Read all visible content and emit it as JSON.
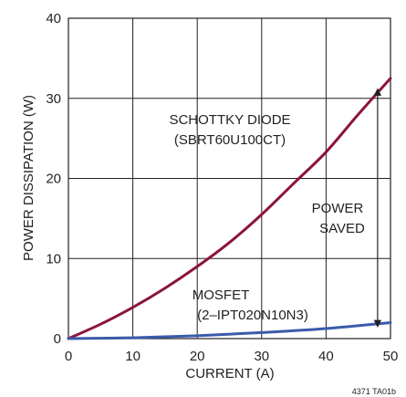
{
  "chart_data": {
    "type": "line",
    "title": "",
    "xlabel": "CURRENT (A)",
    "ylabel": "POWER DISSIPATION (W)",
    "xlim": [
      0,
      50
    ],
    "ylim": [
      0,
      40
    ],
    "x_ticks": [
      "0",
      "10",
      "20",
      "30",
      "40",
      "50"
    ],
    "y_ticks": [
      "0",
      "10",
      "20",
      "30",
      "40"
    ],
    "grid": true,
    "series": [
      {
        "name": "SCHOTTKY DIODE (SBRT60U100CT)",
        "color": "#8b1538",
        "x": [
          0,
          5,
          10,
          15,
          20,
          25,
          30,
          35,
          40,
          45,
          50
        ],
        "y": [
          0,
          1.8,
          3.9,
          6.3,
          9.0,
          12.0,
          15.5,
          19.4,
          23.3,
          28.0,
          32.5
        ]
      },
      {
        "name": "MOSFET (2–IPT020N10N3)",
        "color": "#3a5bab",
        "x": [
          0,
          10,
          20,
          30,
          40,
          50
        ],
        "y": [
          0,
          0.1,
          0.35,
          0.75,
          1.25,
          2.0
        ]
      }
    ],
    "annotations": {
      "schottky_line1": "SCHOTTKY DIODE",
      "schottky_line2": "(SBRT60U100CT)",
      "mosfet_line1": "MOSFET",
      "mosfet_line2": "(2–IPT020N10N3)",
      "power_saved_line1": "POWER",
      "power_saved_line2": "SAVED",
      "arrow_x": 48,
      "arrow_y_low": 1.85,
      "arrow_y_high": 30.8
    },
    "figure_code": "4371 TA01b"
  }
}
